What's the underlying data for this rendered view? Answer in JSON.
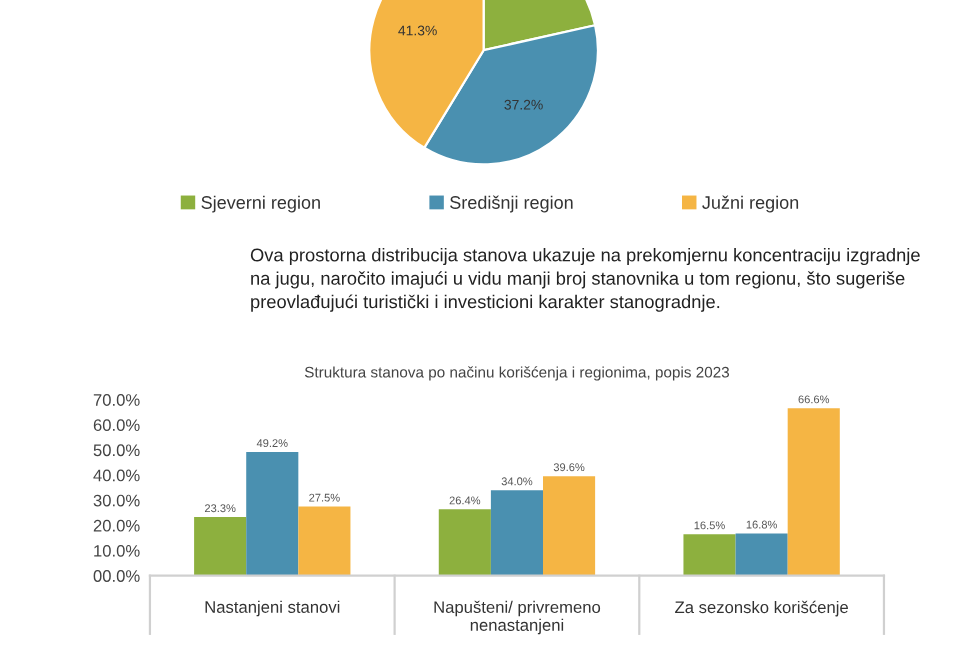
{
  "chart_data": [
    {
      "type": "pie",
      "categories": [
        "Sjeverni region",
        "Središnji region",
        "Južni region"
      ],
      "values": [
        21.5,
        37.2,
        41.3
      ],
      "colors": [
        "#8db03e",
        "#4a90b0",
        "#f5b544"
      ],
      "value_labels": [
        null,
        "37.2%",
        "41.3%"
      ],
      "legend": "bottom",
      "annotations": [
        "Ova prostorna distribucija stanova ukazuje na prekomjernu koncentraciju izgradnje\nna jugu, naročito imajući u vidu manji broj stanovnika u tom regionu, što sugeriše\npreovlađujući turistički i investicioni karakter stanogradnje."
      ]
    },
    {
      "type": "bar",
      "title": "Struktura stanova po načinu korišćenja i regionima, popis 2023",
      "categories": [
        "Nastanjeni stanovi",
        "Napušteni/ privremeno\nnenastanjeni",
        "Za sezonsko korišćenje"
      ],
      "series": [
        {
          "color": "#8db03e",
          "values": [
            23.3,
            26.4,
            16.5
          ],
          "value_labels": [
            "23.3%",
            "26.4%",
            "16.5%"
          ]
        },
        {
          "color": "#4a90b0",
          "values": [
            49.2,
            34.0,
            16.8
          ],
          "value_labels": [
            "49.2%",
            "34.0%",
            "16.8%"
          ]
        },
        {
          "color": "#f5b544",
          "values": [
            27.5,
            39.6,
            66.6
          ],
          "value_labels": [
            "27.5%",
            "39.6%",
            "66.6%"
          ]
        }
      ],
      "ylim": [
        0,
        70
      ],
      "yticks": [
        {
          "value": 0,
          "label": "00.0%"
        },
        {
          "value": 10,
          "label": "10.0%"
        },
        {
          "value": 20,
          "label": "20.0%"
        },
        {
          "value": 30,
          "label": "30.0%"
        },
        {
          "value": 40,
          "label": "40.0%"
        },
        {
          "value": 50,
          "label": "50.0%"
        },
        {
          "value": 60,
          "label": "60.0%"
        },
        {
          "value": 70,
          "label": "70.0%"
        }
      ],
      "grid": false,
      "legend": false
    }
  ]
}
